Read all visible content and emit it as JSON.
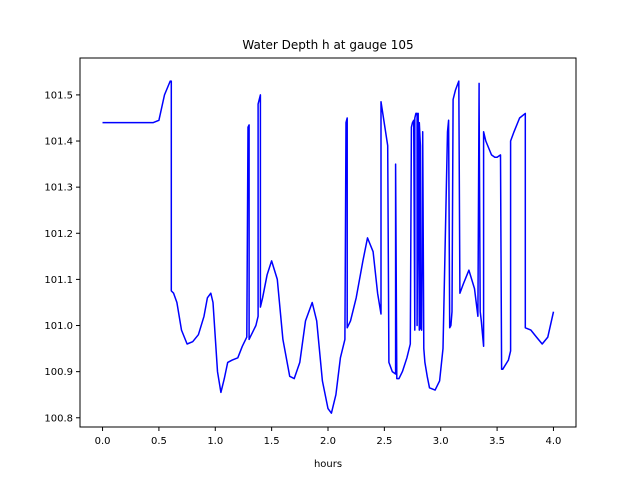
{
  "chart_data": {
    "type": "line",
    "title": "Water Depth h at gauge 105",
    "xlabel": "hours",
    "ylabel": "",
    "xlim": [
      -0.2,
      4.2
    ],
    "ylim": [
      100.78,
      101.58
    ],
    "xticks": [
      0.0,
      0.5,
      1.0,
      1.5,
      2.0,
      2.5,
      3.0,
      3.5,
      4.0
    ],
    "xtick_labels": [
      "0.0",
      "0.5",
      "1.0",
      "1.5",
      "2.0",
      "2.5",
      "3.0",
      "3.5",
      "4.0"
    ],
    "yticks": [
      100.8,
      100.9,
      101.0,
      101.1,
      101.2,
      101.3,
      101.4,
      101.5
    ],
    "ytick_labels": [
      "100.8",
      "100.9",
      "101.0",
      "101.1",
      "101.2",
      "101.3",
      "101.4",
      "101.5"
    ],
    "grid": false,
    "color": "#0000ff",
    "series": [
      {
        "x": [
          0.0,
          0.45,
          0.5,
          0.55,
          0.6,
          0.61,
          0.61,
          0.63,
          0.66,
          0.7,
          0.75,
          0.8,
          0.85,
          0.9,
          0.93,
          0.96,
          0.98,
          1.02,
          1.05,
          1.08,
          1.11,
          1.15,
          1.2,
          1.24,
          1.28,
          1.29,
          1.3,
          1.3,
          1.31,
          1.33,
          1.36,
          1.38,
          1.38,
          1.4,
          1.4,
          1.42,
          1.46,
          1.5,
          1.55,
          1.6,
          1.66,
          1.7,
          1.75,
          1.8,
          1.86,
          1.9,
          1.95,
          2.0,
          2.03,
          2.07,
          2.11,
          2.15,
          2.16,
          2.17,
          2.17,
          2.2,
          2.25,
          2.31,
          2.35,
          2.4,
          2.44,
          2.47,
          2.47,
          2.53,
          2.54,
          2.57,
          2.6,
          2.6,
          2.61,
          2.63,
          2.66,
          2.7,
          2.73,
          2.74,
          2.75,
          2.76,
          2.77,
          2.77,
          2.78,
          2.79,
          2.79,
          2.8,
          2.8,
          2.81,
          2.81,
          2.82,
          2.82,
          2.83,
          2.84,
          2.85,
          2.86,
          2.86,
          2.88,
          2.9,
          2.95,
          2.99,
          3.02,
          3.06,
          3.07,
          3.08,
          3.09,
          3.1,
          3.11,
          3.13,
          3.16,
          3.17,
          3.2,
          3.25,
          3.3,
          3.33,
          3.34,
          3.34,
          3.35,
          3.36,
          3.38,
          3.38,
          3.4,
          3.45,
          3.48,
          3.5,
          3.53,
          3.54,
          3.55,
          3.6,
          3.62,
          3.62,
          3.65,
          3.7,
          3.75,
          3.75,
          3.8,
          3.85,
          3.9,
          3.95,
          4.0
        ],
        "y": [
          101.44,
          101.44,
          101.445,
          101.5,
          101.53,
          101.53,
          101.075,
          101.07,
          101.05,
          100.99,
          100.96,
          100.965,
          100.98,
          101.02,
          101.06,
          101.07,
          101.05,
          100.9,
          100.855,
          100.885,
          100.92,
          100.925,
          100.93,
          100.955,
          100.975,
          101.43,
          101.435,
          100.97,
          100.975,
          100.985,
          101.0,
          101.02,
          101.48,
          101.5,
          101.04,
          101.06,
          101.11,
          101.14,
          101.1,
          100.97,
          100.89,
          100.885,
          100.92,
          101.01,
          101.05,
          101.01,
          100.88,
          100.82,
          100.81,
          100.85,
          100.93,
          100.97,
          101.44,
          101.45,
          100.995,
          101.01,
          101.06,
          101.14,
          101.19,
          101.16,
          101.07,
          101.025,
          101.485,
          101.39,
          100.92,
          100.9,
          100.895,
          101.35,
          100.885,
          100.885,
          100.9,
          100.93,
          100.96,
          101.43,
          101.44,
          101.445,
          100.99,
          101.45,
          101.46,
          101.46,
          101.0,
          101.46,
          101.455,
          100.99,
          101.44,
          101.39,
          100.995,
          100.99,
          101.42,
          100.95,
          100.92,
          100.92,
          100.89,
          100.865,
          100.86,
          100.88,
          100.95,
          101.42,
          101.445,
          100.995,
          101.0,
          101.03,
          101.49,
          101.51,
          101.53,
          101.07,
          101.09,
          101.12,
          101.08,
          101.02,
          101.525,
          101.495,
          101.03,
          101.01,
          100.955,
          101.42,
          101.4,
          101.37,
          101.365,
          101.365,
          101.37,
          100.905,
          100.905,
          100.925,
          100.945,
          101.4,
          101.42,
          101.45,
          101.46,
          100.995,
          100.99,
          100.975,
          100.96,
          100.975,
          101.03
        ]
      }
    ]
  }
}
